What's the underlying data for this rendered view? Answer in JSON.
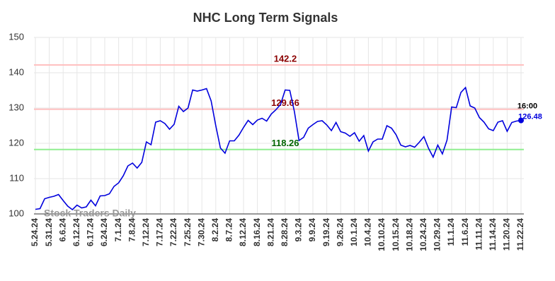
{
  "chart_data": {
    "type": "line",
    "title": "NHC Long Term Signals",
    "watermark": "Stock Traders Daily",
    "categories": [
      "5.24.24",
      null,
      null,
      "5.31.24",
      null,
      null,
      "6.6.24",
      null,
      null,
      "6.12.24",
      null,
      null,
      "6.17.24",
      null,
      null,
      "6.24.24",
      null,
      null,
      "7.1.24",
      null,
      null,
      "7.8.24",
      null,
      null,
      "7.12.24",
      null,
      null,
      "7.17.24",
      null,
      null,
      "7.22.24",
      null,
      null,
      "7.25.24",
      null,
      null,
      "7.30.24",
      null,
      null,
      "8.2.24",
      null,
      null,
      "8.7.24",
      null,
      null,
      "8.12.24",
      null,
      null,
      "8.16.24",
      null,
      null,
      "8.21.24",
      null,
      null,
      "8.28.24",
      null,
      null,
      "9.3.24",
      null,
      null,
      "9.9.24",
      null,
      null,
      "9.19.24",
      null,
      null,
      "9.26.24",
      null,
      null,
      "10.1.24",
      null,
      null,
      "10.4.24",
      null,
      null,
      "10.10.24",
      null,
      null,
      "10.15.24",
      null,
      null,
      "10.18.24",
      null,
      null,
      "10.24.24",
      null,
      null,
      "10.29.24",
      null,
      null,
      "11.1.24",
      null,
      null,
      "11.6.24",
      null,
      null,
      "11.11.24",
      null,
      null,
      "11.14.24",
      null,
      null,
      "11.20.24",
      null,
      null,
      "11.22.24"
    ],
    "series": [
      {
        "name": "NHC",
        "color": "#0000dd",
        "values": [
          101.3,
          101.5,
          104.3,
          104.7,
          105.0,
          105.5,
          103.8,
          102.2,
          101.2,
          102.5,
          101.7,
          102.0,
          103.9,
          102.3,
          105.1,
          105.2,
          105.7,
          107.8,
          108.8,
          110.8,
          113.6,
          114.4,
          113.0,
          114.6,
          120.4,
          119.6,
          126.0,
          126.4,
          125.6,
          124.0,
          125.4,
          130.5,
          129.0,
          130.0,
          135.1,
          134.8,
          135.1,
          135.5,
          132.0,
          125.0,
          118.7,
          117.2,
          120.7,
          120.7,
          122.3,
          124.5,
          126.5,
          125.3,
          126.6,
          127.1,
          126.3,
          128.3,
          129.5,
          131.0,
          135.1,
          135.0,
          129.0,
          120.8,
          121.7,
          124.3,
          125.3,
          126.2,
          126.4,
          125.2,
          123.6,
          125.9,
          123.3,
          122.9,
          122.0,
          123.0,
          120.6,
          122.2,
          117.8,
          120.4,
          121.2,
          121.2,
          125.0,
          124.3,
          122.4,
          119.5,
          119.0,
          119.4,
          118.9,
          120.3,
          121.9,
          118.6,
          116.1,
          119.5,
          117.0,
          120.9,
          130.3,
          130.1,
          134.4,
          135.8,
          130.6,
          130.0,
          127.3,
          126.0,
          124.1,
          123.6,
          126.0,
          126.4,
          123.4,
          125.9,
          126.3,
          126.48
        ],
        "last_time": "16:00"
      }
    ],
    "signals": [
      {
        "value": 142.2,
        "color": "#ffc0c0",
        "label_color": "#8b0000"
      },
      {
        "value": 129.66,
        "color": "#ffc0c0",
        "label_color": "#8b0000"
      },
      {
        "value": 118.26,
        "color": "#90ee90",
        "label_color": "#006400"
      }
    ],
    "ylim": [
      100,
      150
    ],
    "yticks": [
      100,
      110,
      120,
      130,
      140,
      150
    ],
    "grid": true
  }
}
